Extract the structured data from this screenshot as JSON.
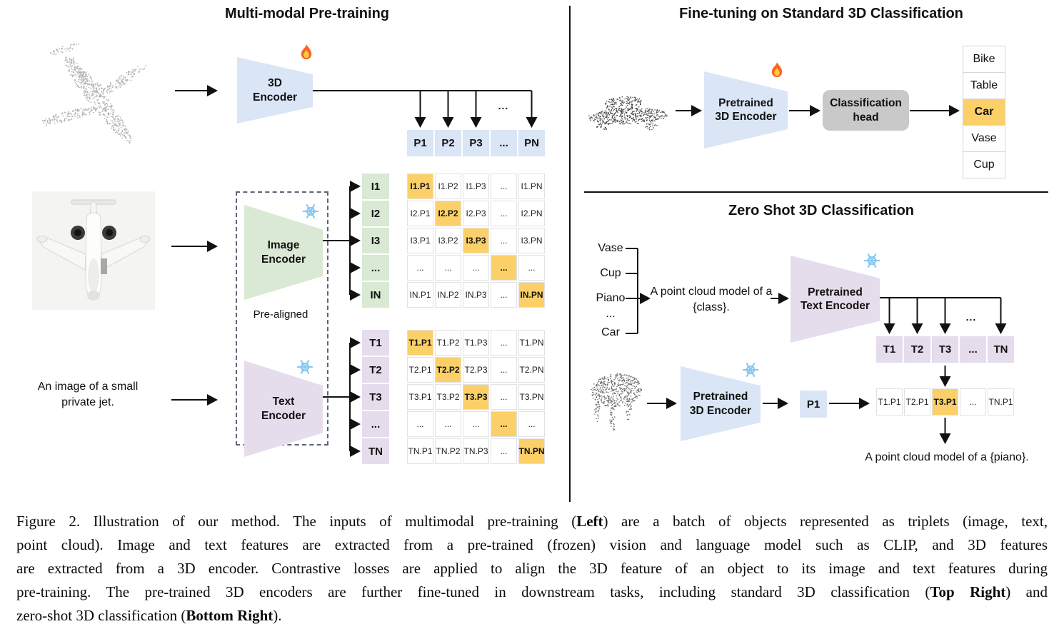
{
  "colors": {
    "blue": "#dae5f6",
    "green": "#d9e9d4",
    "purple": "#e5dcec",
    "highlight": "#fbd069",
    "head_gray": "#c9c9c9"
  },
  "left_panel": {
    "title": "Multi-modal Pre-training",
    "point_cloud": "airplane-point-cloud",
    "photo": "private-jet-photo",
    "text_input": "An image of a small private jet.",
    "encoder_3d": {
      "label": "3D Encoder",
      "icon": "fire-icon"
    },
    "image_encoder": {
      "label": "Image Encoder",
      "icon": "snowflake-icon"
    },
    "text_encoder": {
      "label": "Text Encoder",
      "icon": "snowflake-icon"
    },
    "pre_aligned_label": "Pre-aligned",
    "p_dots": "...",
    "p_row": [
      "P1",
      "P2",
      "P3",
      "...",
      "PN"
    ],
    "i_col": [
      "I1",
      "I2",
      "I3",
      "...",
      "IN"
    ],
    "t_col": [
      "T1",
      "T2",
      "T3",
      "...",
      "TN"
    ],
    "i_matrix": [
      [
        "I1.P1",
        "I1.P2",
        "I1.P3",
        "...",
        "I1.PN"
      ],
      [
        "I2.P1",
        "I2.P2",
        "I2.P3",
        "...",
        "I2.PN"
      ],
      [
        "I3.P1",
        "I3.P2",
        "I3.P3",
        "...",
        "I3.PN"
      ],
      [
        "...",
        "...",
        "...",
        "...",
        "..."
      ],
      [
        "IN.P1",
        "IN.P2",
        "IN.P3",
        "...",
        "IN.PN"
      ]
    ],
    "t_matrix": [
      [
        "T1.P1",
        "T1.P2",
        "T1.P3",
        "...",
        "T1.PN"
      ],
      [
        "T2.P1",
        "T2.P2",
        "T2.P3",
        "...",
        "T2.PN"
      ],
      [
        "T3.P1",
        "T3.P2",
        "T3.P3",
        "...",
        "T3.PN"
      ],
      [
        "...",
        "...",
        "...",
        "...",
        "..."
      ],
      [
        "TN.P1",
        "TN.P2",
        "TN.P3",
        "...",
        "TN.PN"
      ]
    ]
  },
  "top_right_panel": {
    "title": "Fine-tuning on Standard 3D Classification",
    "point_cloud": "car-point-cloud",
    "encoder": {
      "label": "Pretrained 3D Encoder",
      "icon": "fire-icon"
    },
    "classification_head": "Classification head",
    "classes": [
      "Bike",
      "Table",
      "Car",
      "Vase",
      "Cup"
    ],
    "highlighted_class": "Car"
  },
  "bottom_right_panel": {
    "title": "Zero Shot 3D Classification",
    "class_prompts": [
      "Vase",
      "Cup",
      "Piano",
      "...",
      "Car"
    ],
    "prompt": "A point cloud model of a {class}.",
    "text_encoder": {
      "label": "Pretrained Text Encoder",
      "icon": "snowflake-icon"
    },
    "point_cloud": "piano-point-cloud",
    "encoder_3d": {
      "label": "Pretrained 3D Encoder",
      "icon": "snowflake-icon"
    },
    "p_cell": "P1",
    "t_dots": "...",
    "t_row": [
      "T1",
      "T2",
      "T3",
      "...",
      "TN"
    ],
    "result_row": [
      "T1.P1",
      "T2.P1",
      "T3.P1",
      "...",
      "TN.P1"
    ],
    "highlight_index": 2,
    "result_text": "A point cloud model of a {piano}."
  },
  "caption": {
    "lines": [
      [
        {
          "t": "Figure 2. Illustration of our method. The inputs of multimodal pre-training ("
        },
        {
          "t": "Left",
          "b": true
        },
        {
          "t": ") are a batch of objects represented as triplets (image, text,"
        }
      ],
      [
        {
          "t": "point cloud). Image and text features are extracted from a pre-trained (frozen) vision and language model such as CLIP, and 3D features"
        }
      ],
      [
        {
          "t": "are extracted from a 3D encoder. Contrastive losses are applied to align the 3D feature of an object to its image and text features during"
        }
      ],
      [
        {
          "t": "pre-training. The pre-trained 3D encoders are further fine-tuned in downstream tasks, including standard 3D classification ("
        },
        {
          "t": "Top Right",
          "b": true
        },
        {
          "t": ") and"
        }
      ],
      [
        {
          "t": "zero-shot 3D classification ("
        },
        {
          "t": "Bottom Right",
          "b": true
        },
        {
          "t": ")."
        }
      ]
    ]
  }
}
